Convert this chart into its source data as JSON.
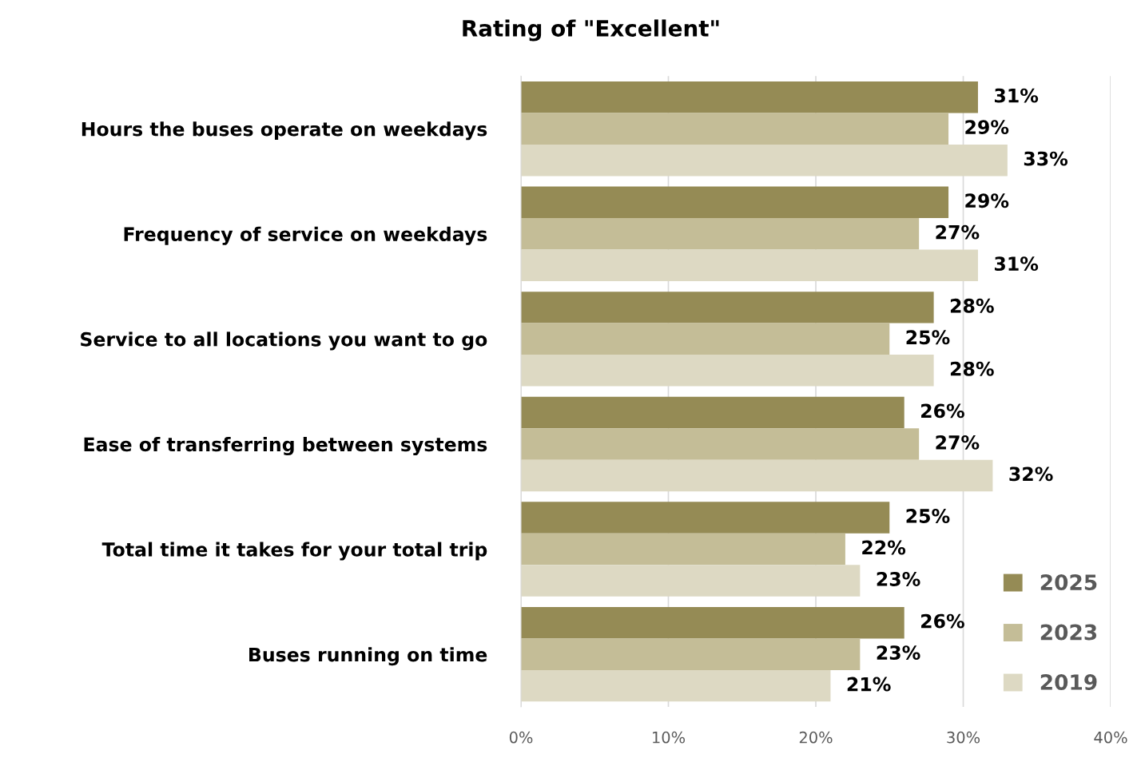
{
  "chart_data": {
    "type": "bar",
    "orientation": "horizontal",
    "title": "Rating of \"Excellent\"",
    "categories": [
      "Hours the buses operate on weekdays",
      "Frequency of service on weekdays",
      "Service to all locations you want to go",
      "Ease of transferring between systems",
      "Total time it takes for your total trip",
      "Buses running on time"
    ],
    "series": [
      {
        "name": "2025",
        "color": "#958b55",
        "values": [
          31,
          29,
          28,
          26,
          25,
          26
        ],
        "value_labels": [
          "31%",
          "29%",
          "28%",
          "26%",
          "25%",
          "26%"
        ]
      },
      {
        "name": "2023",
        "color": "#c4bd97",
        "values": [
          29,
          27,
          25,
          27,
          22,
          23
        ],
        "value_labels": [
          "29%",
          "27%",
          "25%",
          "27%",
          "22%",
          "23%"
        ]
      },
      {
        "name": "2019",
        "color": "#ddd9c3",
        "values": [
          33,
          31,
          28,
          32,
          23,
          21
        ],
        "value_labels": [
          "33%",
          "31%",
          "28%",
          "32%",
          "23%",
          "21%"
        ]
      }
    ],
    "xlim": [
      0,
      40
    ],
    "xticks": [
      {
        "value": 0,
        "label": "0%"
      },
      {
        "value": 10,
        "label": "10%"
      },
      {
        "value": 20,
        "label": "20%"
      },
      {
        "value": 30,
        "label": "30%"
      },
      {
        "value": 40,
        "label": "40%"
      }
    ],
    "grid": "x",
    "legend": "bottom right"
  }
}
